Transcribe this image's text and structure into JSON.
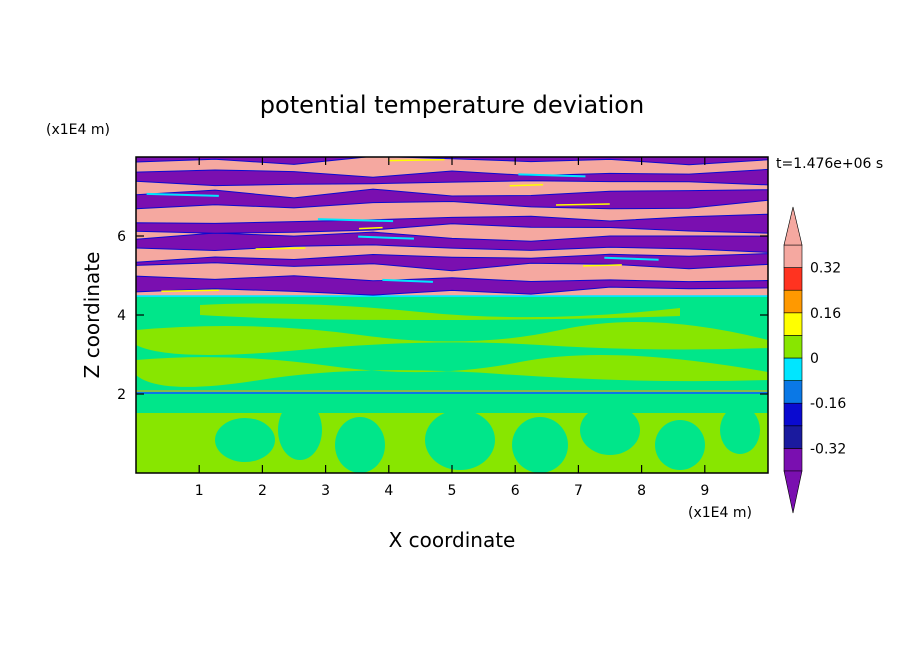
{
  "chart_data": {
    "type": "heatmap",
    "title": "potential temperature deviation",
    "xlabel": "X coordinate",
    "ylabel": "Z coordinate",
    "x_unit": "(x1E4 m)",
    "y_unit": "(x1E4 m)",
    "time_label": "t=1.476e+06 s",
    "xlim": [
      0,
      10
    ],
    "ylim": [
      0,
      8
    ],
    "x_ticks": [
      1,
      2,
      3,
      4,
      5,
      6,
      7,
      8,
      9
    ],
    "y_ticks": [
      2,
      4,
      6
    ],
    "colorbar": {
      "levels": [
        -0.4,
        -0.32,
        -0.24,
        -0.16,
        -0.08,
        0,
        0.08,
        0.16,
        0.24,
        0.32,
        0.4
      ],
      "labeled_levels": [
        "0.32",
        "0.16",
        "0",
        "-0.16",
        "-0.32"
      ],
      "labeled_values": [
        0.32,
        0.16,
        0,
        -0.16,
        -0.32
      ],
      "colors": [
        "#7a0fb0",
        "#1a1a9e",
        "#0a0ad0",
        "#0a78e6",
        "#00e6ff",
        "#00e68a",
        "#88e600",
        "#ffff00",
        "#ff9900",
        "#ff3320",
        "#f5a8a0"
      ],
      "extend": "both"
    },
    "regions": [
      {
        "z_range": [
          0,
          2
        ],
        "description_value": 0.04
      },
      {
        "z_range": [
          2,
          4.5
        ],
        "description_value": -0.02
      },
      {
        "z_range": [
          4.5,
          8
        ],
        "description_value": "alternating -0.4 / 0.4 layers"
      }
    ]
  }
}
